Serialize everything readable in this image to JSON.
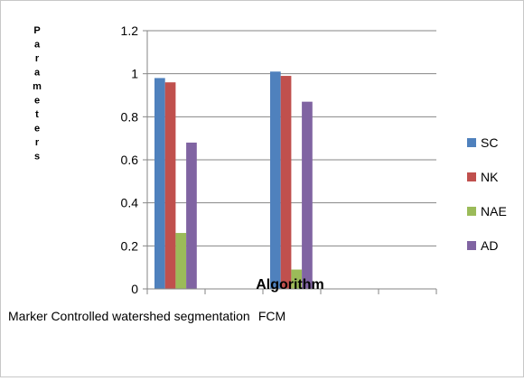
{
  "chart_data": {
    "type": "bar",
    "ylabel": "Parameters",
    "xlabel": "Algorithm",
    "categories": [
      "Marker Controlled watershed segmentation",
      "FCM"
    ],
    "ylim": [
      0,
      1.2
    ],
    "yticks": [
      "0",
      "0.2",
      "0.4",
      "0.6",
      "0.8",
      "1",
      "1.2"
    ],
    "grid": true,
    "legend_position": "right",
    "series": [
      {
        "name": "SC",
        "color": "#4f81bd",
        "values": [
          0.98,
          1.01
        ]
      },
      {
        "name": "NK",
        "color": "#c0504d",
        "values": [
          0.96,
          0.99
        ]
      },
      {
        "name": "NAE",
        "color": "#9bbb59",
        "values": [
          0.26,
          0.09
        ]
      },
      {
        "name": "AD",
        "color": "#8064a2",
        "values": [
          0.68,
          0.87
        ]
      }
    ]
  }
}
